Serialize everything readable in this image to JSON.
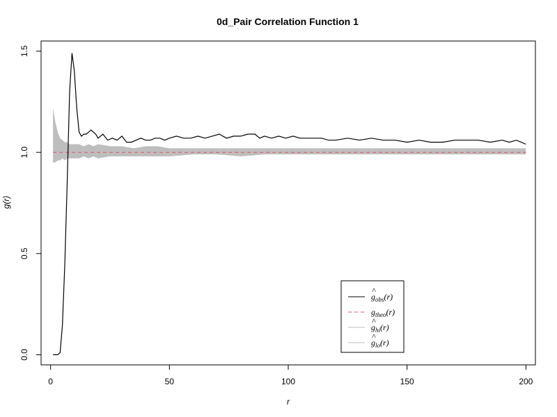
{
  "chart_data": {
    "type": "line",
    "title": "0d_Pair Correlation Function 1",
    "xlabel": "r",
    "ylabel": "g(r)",
    "xlim": [
      -4,
      204
    ],
    "ylim": [
      -0.05,
      1.55
    ],
    "x_ticks": [
      0,
      50,
      100,
      150,
      200
    ],
    "y_ticks": [
      0.0,
      0.5,
      1.0,
      1.5
    ],
    "x_tick_labels": [
      "0",
      "50",
      "100",
      "150",
      "200"
    ],
    "y_tick_labels": [
      "0.0",
      "0.5",
      "1.0",
      "1.5"
    ],
    "grid": false,
    "legend_position": "bottom-right",
    "colors": {
      "obs": "#000000",
      "theo": "#DF536B",
      "band": "#BEBEBE"
    },
    "series": [
      {
        "key": "obs",
        "name_base": "g",
        "hat": true,
        "name_sub": "obs",
        "name_tail": "(r)",
        "style": "solid",
        "x": [
          1,
          2,
          3,
          4,
          5,
          6,
          7,
          8,
          9,
          10,
          11,
          12,
          13,
          14,
          15,
          16,
          17,
          18,
          19,
          20,
          22,
          24,
          26,
          28,
          30,
          32,
          34,
          36,
          38,
          40,
          42,
          44,
          46,
          48,
          50,
          53,
          56,
          59,
          62,
          65,
          68,
          71,
          74,
          77,
          80,
          83,
          86,
          88,
          90,
          93,
          96,
          99,
          102,
          105,
          108,
          111,
          114,
          117,
          120,
          125,
          130,
          135,
          140,
          145,
          150,
          155,
          160,
          165,
          170,
          175,
          180,
          185,
          190,
          193,
          196,
          198,
          200
        ],
        "y": [
          0.0,
          0.0,
          0.0,
          0.01,
          0.15,
          0.45,
          0.85,
          1.3,
          1.49,
          1.4,
          1.22,
          1.1,
          1.08,
          1.09,
          1.09,
          1.1,
          1.11,
          1.1,
          1.09,
          1.07,
          1.09,
          1.06,
          1.07,
          1.06,
          1.08,
          1.05,
          1.05,
          1.06,
          1.07,
          1.06,
          1.06,
          1.07,
          1.07,
          1.06,
          1.07,
          1.08,
          1.07,
          1.07,
          1.08,
          1.07,
          1.08,
          1.09,
          1.07,
          1.08,
          1.08,
          1.09,
          1.09,
          1.07,
          1.08,
          1.07,
          1.08,
          1.07,
          1.08,
          1.07,
          1.07,
          1.07,
          1.07,
          1.06,
          1.06,
          1.07,
          1.06,
          1.07,
          1.06,
          1.06,
          1.05,
          1.06,
          1.05,
          1.05,
          1.06,
          1.06,
          1.06,
          1.05,
          1.06,
          1.05,
          1.06,
          1.05,
          1.04
        ]
      },
      {
        "key": "theo",
        "name_base": "g",
        "hat": false,
        "name_sub": "theo",
        "name_tail": "(r)",
        "style": "dashed",
        "x": [
          1,
          200
        ],
        "y": [
          1.0,
          1.0
        ]
      },
      {
        "key": "hi",
        "name_base": "g",
        "hat": true,
        "name_sub": "hi",
        "name_tail": "(r)",
        "style": "band-upper",
        "x": [
          1,
          2,
          3,
          4,
          5,
          6,
          7,
          8,
          10,
          12,
          14,
          16,
          18,
          20,
          25,
          30,
          35,
          40,
          45,
          50,
          60,
          70,
          80,
          90,
          100,
          110,
          120,
          130,
          140,
          150,
          160,
          170,
          180,
          190,
          200
        ],
        "y": [
          1.22,
          1.15,
          1.1,
          1.07,
          1.06,
          1.05,
          1.05,
          1.04,
          1.04,
          1.04,
          1.03,
          1.04,
          1.03,
          1.04,
          1.03,
          1.03,
          1.02,
          1.03,
          1.03,
          1.02,
          1.02,
          1.02,
          1.02,
          1.02,
          1.02,
          1.02,
          1.02,
          1.02,
          1.02,
          1.02,
          1.02,
          1.02,
          1.02,
          1.02,
          1.02
        ]
      },
      {
        "key": "lo",
        "name_base": "g",
        "hat": true,
        "name_sub": "lo",
        "name_tail": "(r)",
        "style": "band-lower",
        "x": [
          1,
          2,
          3,
          4,
          5,
          6,
          7,
          8,
          10,
          12,
          14,
          16,
          18,
          20,
          25,
          30,
          35,
          40,
          45,
          50,
          60,
          70,
          80,
          90,
          100,
          110,
          120,
          130,
          140,
          150,
          160,
          170,
          180,
          190,
          200
        ],
        "y": [
          0.95,
          0.95,
          0.96,
          0.96,
          0.97,
          0.96,
          0.97,
          0.97,
          0.97,
          0.97,
          0.98,
          0.97,
          0.98,
          0.97,
          0.98,
          0.98,
          0.98,
          0.98,
          0.98,
          0.98,
          0.99,
          0.99,
          0.98,
          0.99,
          0.99,
          0.99,
          0.99,
          0.99,
          0.99,
          0.99,
          0.99,
          0.99,
          0.99,
          0.99,
          0.99
        ]
      }
    ]
  }
}
